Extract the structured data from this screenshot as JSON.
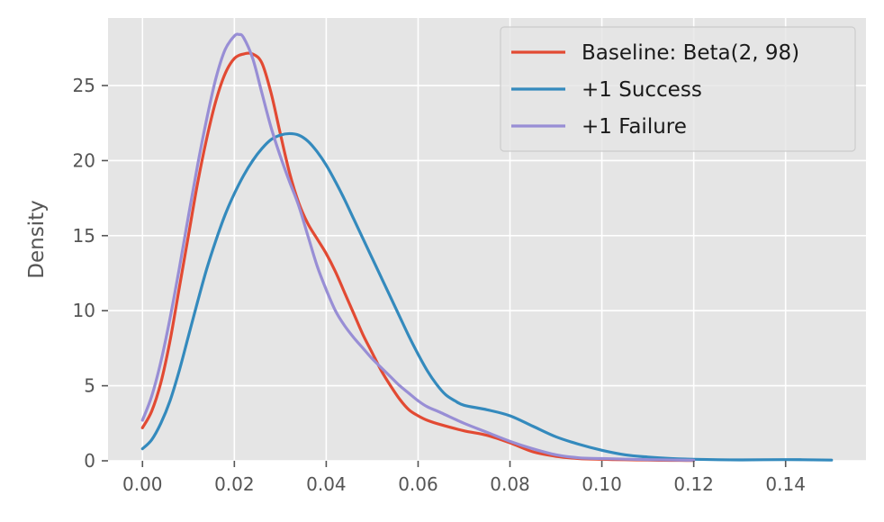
{
  "chart_data": {
    "type": "line",
    "title": "",
    "xlabel": "",
    "ylabel": "Density",
    "xlim": [
      -0.0075,
      0.1575
    ],
    "ylim": [
      0,
      29.5
    ],
    "xticks": [
      0.0,
      0.02,
      0.04,
      0.06,
      0.08,
      0.1,
      0.12,
      0.14
    ],
    "xtick_labels": [
      "0.00",
      "0.02",
      "0.04",
      "0.06",
      "0.08",
      "0.10",
      "0.12",
      "0.14"
    ],
    "yticks": [
      0,
      5,
      10,
      15,
      20,
      25
    ],
    "ytick_labels": [
      "0",
      "5",
      "10",
      "15",
      "20",
      "25"
    ],
    "grid": true,
    "legend": "top-right",
    "background": "#e5e5e5",
    "series": [
      {
        "name": "Baseline: Beta(2, 98)",
        "color": "#e24a33",
        "x": [
          0.0,
          0.002,
          0.004,
          0.006,
          0.008,
          0.01,
          0.012,
          0.014,
          0.016,
          0.018,
          0.02,
          0.022,
          0.024,
          0.026,
          0.028,
          0.03,
          0.032,
          0.034,
          0.036,
          0.038,
          0.04,
          0.042,
          0.044,
          0.046,
          0.048,
          0.05,
          0.052,
          0.054,
          0.056,
          0.058,
          0.06,
          0.062,
          0.065,
          0.07,
          0.075,
          0.08,
          0.085,
          0.09,
          0.095,
          0.1,
          0.105,
          0.11,
          0.115,
          0.12
        ],
        "y": [
          2.2,
          3.3,
          5.2,
          8.0,
          11.5,
          15.0,
          18.5,
          21.5,
          24.0,
          25.8,
          26.8,
          27.1,
          27.1,
          26.5,
          24.5,
          21.8,
          19.2,
          17.2,
          15.8,
          14.8,
          13.8,
          12.6,
          11.2,
          9.8,
          8.4,
          7.2,
          6.0,
          5.0,
          4.1,
          3.4,
          3.0,
          2.7,
          2.4,
          2.0,
          1.7,
          1.2,
          0.6,
          0.3,
          0.15,
          0.1,
          0.07,
          0.05,
          0.03,
          0.02
        ]
      },
      {
        "name": "+1 Success",
        "color": "#348abd",
        "x": [
          0.0,
          0.002,
          0.004,
          0.006,
          0.008,
          0.01,
          0.012,
          0.014,
          0.016,
          0.018,
          0.02,
          0.022,
          0.024,
          0.026,
          0.028,
          0.03,
          0.032,
          0.034,
          0.036,
          0.038,
          0.04,
          0.042,
          0.044,
          0.046,
          0.048,
          0.05,
          0.052,
          0.054,
          0.056,
          0.058,
          0.06,
          0.062,
          0.064,
          0.066,
          0.068,
          0.07,
          0.075,
          0.08,
          0.085,
          0.09,
          0.095,
          0.1,
          0.105,
          0.11,
          0.115,
          0.12,
          0.13,
          0.14,
          0.15
        ],
        "y": [
          0.8,
          1.4,
          2.5,
          4.0,
          6.0,
          8.3,
          10.6,
          12.8,
          14.7,
          16.4,
          17.8,
          19.0,
          20.0,
          20.8,
          21.4,
          21.7,
          21.8,
          21.7,
          21.3,
          20.6,
          19.7,
          18.6,
          17.4,
          16.1,
          14.8,
          13.5,
          12.2,
          10.9,
          9.6,
          8.3,
          7.1,
          6.0,
          5.1,
          4.4,
          4.0,
          3.7,
          3.4,
          3.0,
          2.3,
          1.6,
          1.1,
          0.7,
          0.4,
          0.25,
          0.15,
          0.1,
          0.06,
          0.08,
          0.05
        ]
      },
      {
        "name": "+1 Failure",
        "color": "#988ed5",
        "x": [
          0.0,
          0.002,
          0.004,
          0.006,
          0.008,
          0.01,
          0.012,
          0.014,
          0.016,
          0.018,
          0.02,
          0.021,
          0.022,
          0.024,
          0.026,
          0.028,
          0.03,
          0.032,
          0.034,
          0.036,
          0.038,
          0.04,
          0.042,
          0.044,
          0.046,
          0.048,
          0.05,
          0.052,
          0.054,
          0.056,
          0.058,
          0.06,
          0.062,
          0.065,
          0.07,
          0.075,
          0.08,
          0.085,
          0.09,
          0.095,
          0.1,
          0.11,
          0.12
        ],
        "y": [
          2.7,
          4.3,
          6.6,
          9.5,
          12.8,
          16.3,
          19.7,
          22.8,
          25.5,
          27.4,
          28.3,
          28.4,
          28.2,
          26.8,
          24.5,
          22.2,
          20.3,
          18.6,
          17.0,
          15.0,
          13.0,
          11.4,
          10.0,
          9.0,
          8.2,
          7.5,
          6.8,
          6.2,
          5.6,
          5.0,
          4.5,
          4.0,
          3.6,
          3.2,
          2.5,
          1.9,
          1.3,
          0.8,
          0.4,
          0.2,
          0.15,
          0.08,
          0.04
        ]
      }
    ]
  }
}
